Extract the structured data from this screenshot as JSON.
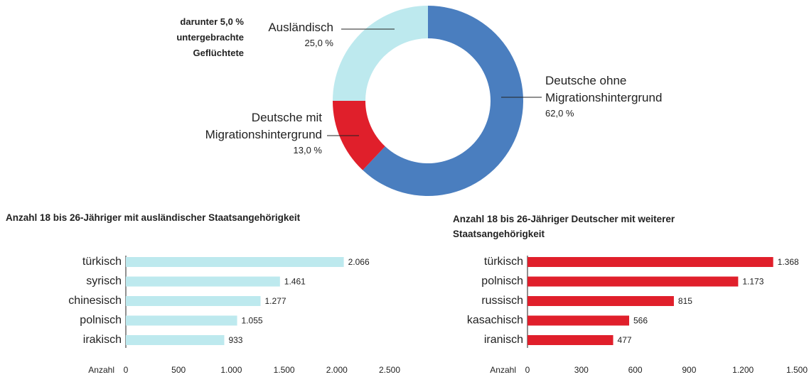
{
  "chart_data": [
    {
      "type": "donut",
      "categories": [
        "Deutsche ohne\nMigrationshintergrund",
        "Deutsche mit\nMigrationshintergrund",
        "Ausländisch"
      ],
      "values": [
        62,
        13,
        25
      ],
      "value_labels": [
        "62,0 %",
        "13,0 %",
        "25,0 %"
      ],
      "colors": [
        "#4a7ebf",
        "#e01f2b",
        "#bde9ee"
      ],
      "annotation": "darunter  5,0 %\nuntergebrachte\nGeflüchtete"
    },
    {
      "type": "hbar",
      "title": "Anzahl 18 bis 26-Jähriger mit ausländischer Staatsangehörigkeit",
      "categories": [
        "türkisch",
        "syrisch",
        "chinesisch",
        "polnisch",
        "irakisch"
      ],
      "values": [
        2066,
        1461,
        1277,
        1055,
        933
      ],
      "value_labels": [
        "2.066",
        "1.461",
        "1.277",
        "1.055",
        "933"
      ],
      "color": "#bde9ee",
      "x_label": "Anzahl",
      "xlim": [
        0,
        2500
      ],
      "xticks": [
        0,
        500,
        {
          "value": 1000,
          "label": "1.000"
        },
        {
          "value": 1500,
          "label": "1.500"
        },
        {
          "value": 2000,
          "label": "2.000"
        },
        {
          "value": 2500,
          "label": "2.500"
        }
      ]
    },
    {
      "type": "hbar",
      "title": "Anzahl 18 bis 26-Jähriger Deutscher mit weiterer\nStaatsangehörigkeit",
      "categories": [
        "türkisch",
        "polnisch",
        "russisch",
        "kasachisch",
        "iranisch"
      ],
      "values": [
        1368,
        1173,
        815,
        566,
        477
      ],
      "value_labels": [
        "1.368",
        "1.173",
        "815",
        "566",
        "477"
      ],
      "color": "#e01f2b",
      "x_label": "Anzahl",
      "xlim": [
        0,
        1500
      ],
      "xticks": [
        0,
        300,
        600,
        900,
        {
          "value": 1200,
          "label": "1.200"
        },
        {
          "value": 1500,
          "label": "1.500"
        }
      ]
    }
  ]
}
